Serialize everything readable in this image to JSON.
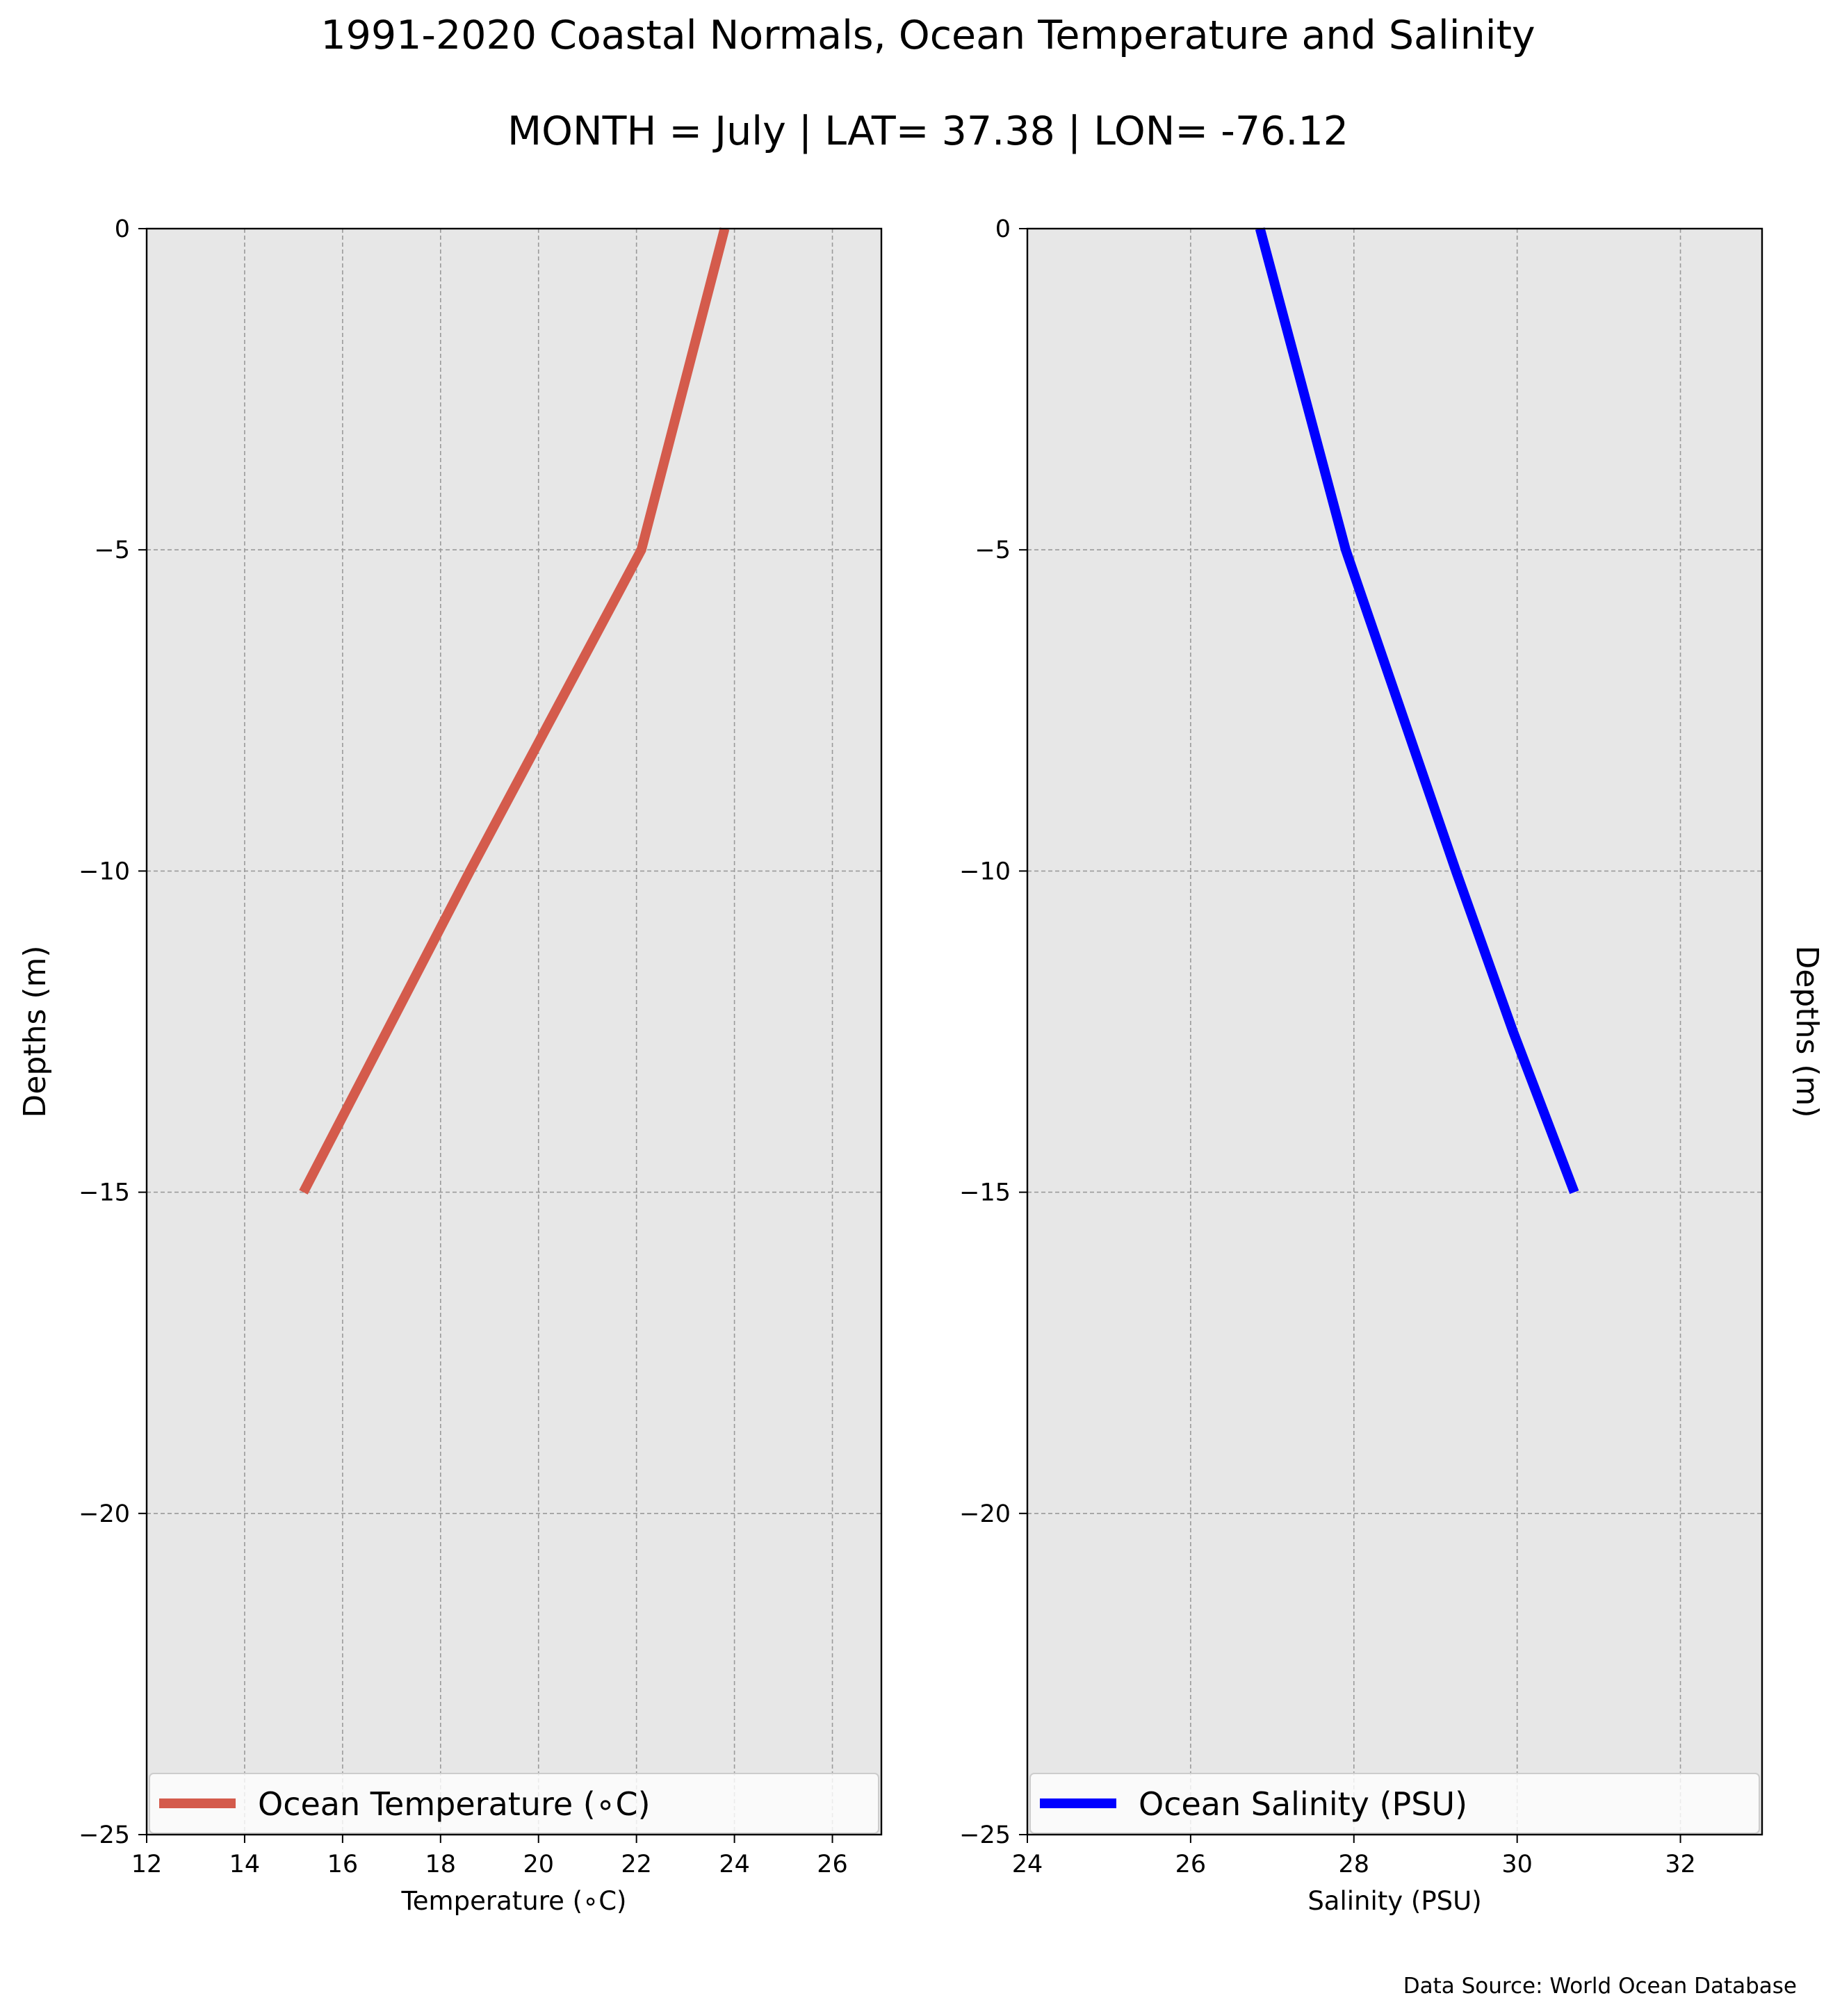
{
  "figure": {
    "title": "1991-2020 Coastal Normals, Ocean Temperature and Salinity",
    "subtitle": "MONTH = July | LAT= 37.38 | LON= -76.12",
    "source_note": "Data Source: World Ocean Database"
  },
  "chart_data": [
    {
      "type": "line",
      "xlabel": "Temperature ($^\\circ$C)",
      "xlabel_display": "Temperature (∘C)",
      "ylabel": "Depths (m)",
      "xlim": [
        12,
        27
      ],
      "ylim": [
        -25,
        0
      ],
      "x_ticks": [
        12,
        14,
        16,
        18,
        20,
        22,
        24,
        26
      ],
      "y_ticks": [
        0,
        -5,
        -10,
        -15,
        -20,
        -25
      ],
      "grid": true,
      "legend_position": "bottom",
      "series": [
        {
          "name": "Ocean Temperature ($^\\circ$C)",
          "name_display": "Ocean Temperature (∘C)",
          "color": "#d45b4c",
          "points": [
            {
              "x": 23.8,
              "y": 0
            },
            {
              "x": 22.1,
              "y": -5
            },
            {
              "x": 20.0,
              "y": -8
            },
            {
              "x": 18.6,
              "y": -10
            },
            {
              "x": 16.9,
              "y": -12.5
            },
            {
              "x": 15.2,
              "y": -15
            }
          ]
        }
      ]
    },
    {
      "type": "line",
      "xlabel": "Salinity (PSU)",
      "ylabel": "Depths (m)",
      "xlim": [
        24,
        33
      ],
      "ylim": [
        -25,
        0
      ],
      "x_ticks": [
        24,
        26,
        28,
        30,
        32
      ],
      "y_ticks": [
        0,
        -5,
        -10,
        -15,
        -20,
        -25
      ],
      "grid": true,
      "legend_position": "bottom",
      "series": [
        {
          "name": "Ocean Salinity (PSU)",
          "color": "#0000ff",
          "points": [
            {
              "x": 26.85,
              "y": 0
            },
            {
              "x": 27.9,
              "y": -5
            },
            {
              "x": 29.25,
              "y": -10
            },
            {
              "x": 29.95,
              "y": -12.5
            },
            {
              "x": 30.7,
              "y": -15
            }
          ]
        }
      ]
    }
  ]
}
